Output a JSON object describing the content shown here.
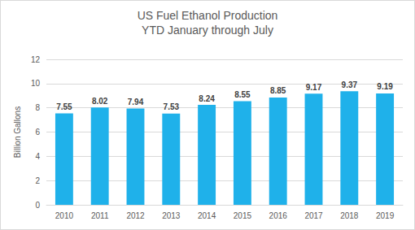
{
  "chart_data": {
    "type": "bar",
    "title": "US Fuel Ethanol Production",
    "subtitle": "YTD January through July",
    "y_label": "Billion Gallons",
    "categories": [
      "2010",
      "2011",
      "2012",
      "2013",
      "2014",
      "2015",
      "2016",
      "2017",
      "2018",
      "2019"
    ],
    "values": [
      7.55,
      8.02,
      7.94,
      7.53,
      8.24,
      8.55,
      8.85,
      9.17,
      9.37,
      9.19
    ],
    "color": "#1fb1ea",
    "ylim": [
      0,
      12
    ],
    "yticks": [
      0,
      2,
      4,
      6,
      8,
      10,
      12
    ],
    "grid": true,
    "data_labels": true
  }
}
